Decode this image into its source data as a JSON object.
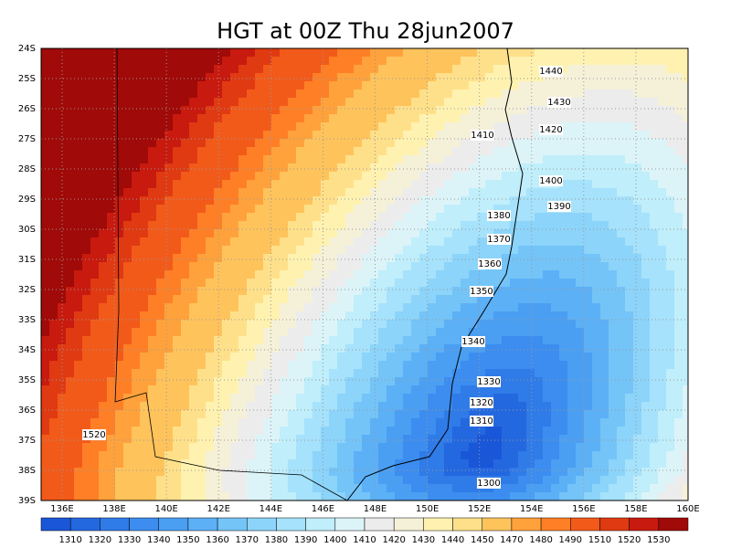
{
  "title": "HGT at 00Z Thu 28jun2007",
  "lat_labels": [
    "24S",
    "25S",
    "26S",
    "27S",
    "28S",
    "29S",
    "30S",
    "31S",
    "32S",
    "33S",
    "34S",
    "35S",
    "36S",
    "37S",
    "38S",
    "39S"
  ],
  "lon_labels": [
    "136E",
    "138E",
    "140E",
    "142E",
    "144E",
    "146E",
    "148E",
    "150E",
    "152E",
    "154E",
    "156E",
    "158E",
    "160E"
  ],
  "contour_labels": [
    1440,
    1430,
    1420,
    1410,
    1400,
    1390,
    1380,
    1370,
    1360,
    1350,
    1340,
    1330,
    1320,
    1310,
    1300,
    1520
  ],
  "colorbar": {
    "levels": [
      1310,
      1320,
      1330,
      1340,
      1350,
      1360,
      1370,
      1380,
      1390,
      1400,
      1410,
      1420,
      1430,
      1440,
      1450,
      1470,
      1480,
      1490,
      1510,
      1520,
      1530
    ],
    "colors": [
      "#1a56d8",
      "#2468e0",
      "#2f7be8",
      "#3c8def",
      "#4a9ff3",
      "#5cb0f6",
      "#74c4f8",
      "#8cd4fa",
      "#a6e2fb",
      "#c0eefb",
      "#dcf4f8",
      "#ececec",
      "#f5f0d8",
      "#fff2b0",
      "#ffe08a",
      "#ffc35c",
      "#ffa23c",
      "#ff7f26",
      "#f25a1a",
      "#e03a12",
      "#c81a0e",
      "#a00a08"
    ]
  }
}
